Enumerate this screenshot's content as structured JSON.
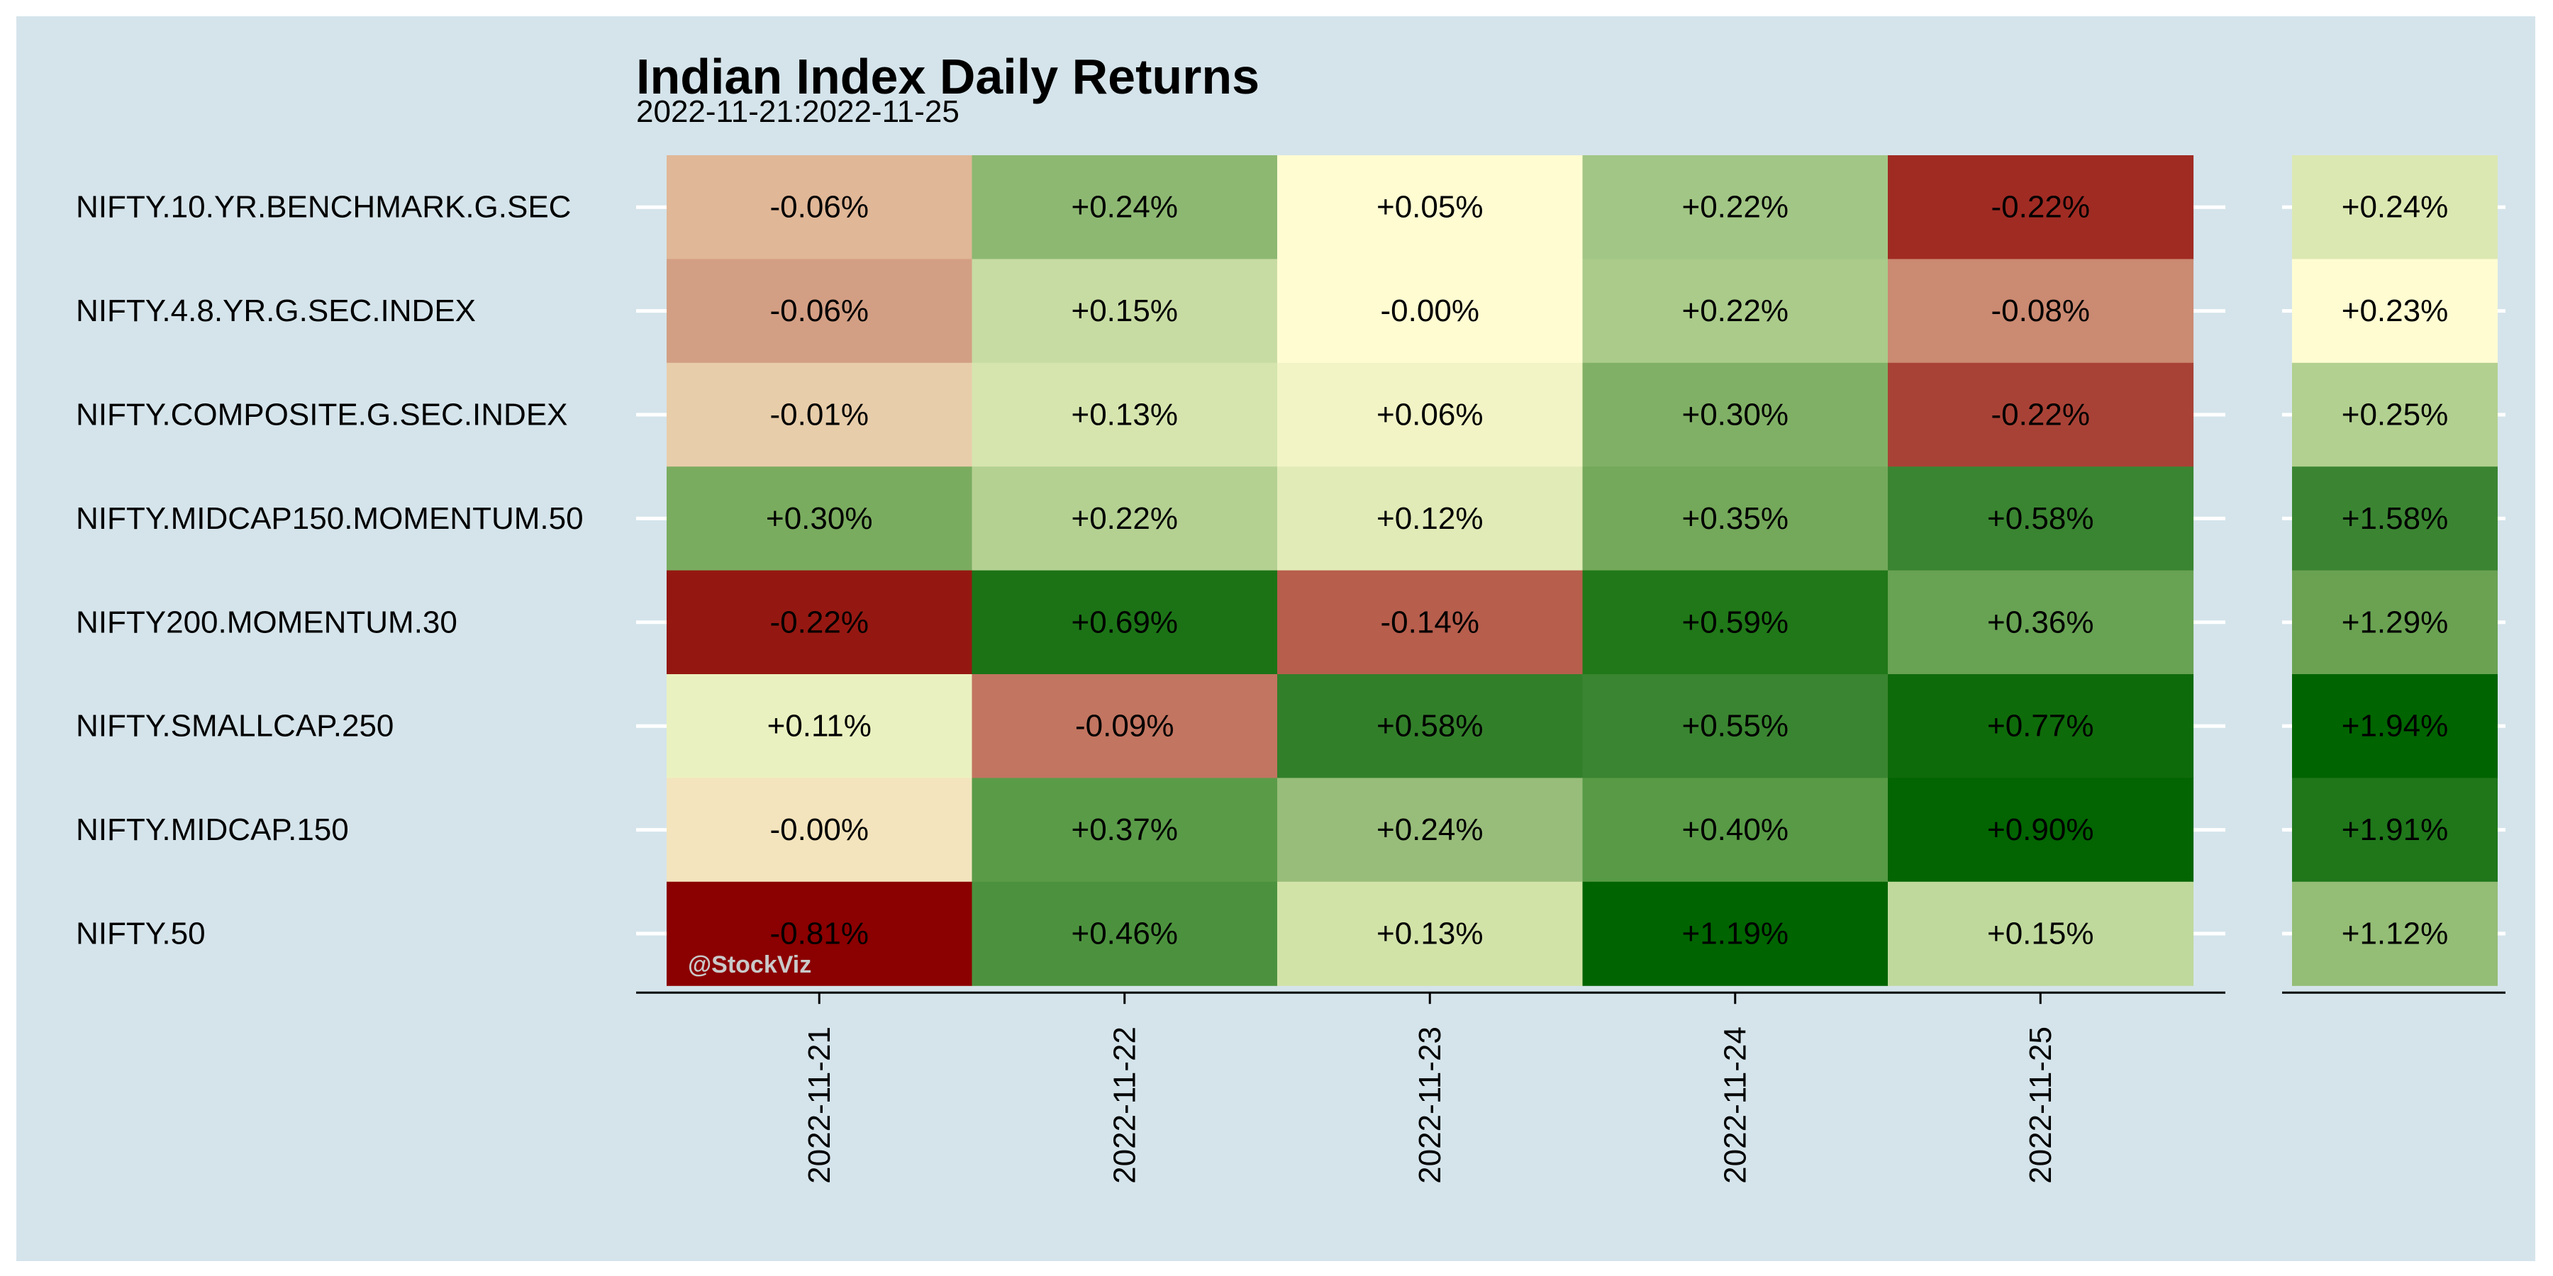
{
  "chart_data": {
    "type": "heatmap",
    "title": "Indian Index Daily Returns",
    "subtitle": "2022-11-21:2022-11-25",
    "watermark": "@StockViz",
    "x": [
      "2022-11-21",
      "2022-11-22",
      "2022-11-23",
      "2022-11-24",
      "2022-11-25"
    ],
    "rows": [
      {
        "name": "NIFTY.10.YR.BENCHMARK.G.SEC",
        "labels": [
          "-0.06%",
          "+0.24%",
          "+0.05%",
          "+0.22%",
          "-0.22%"
        ],
        "values": [
          -0.06,
          0.24,
          0.05,
          0.22,
          -0.22
        ],
        "colors": [
          "#e0b797",
          "#8db872",
          "#fffcd2",
          "#a2c685",
          "#a02b23"
        ],
        "total_label": "+0.24%",
        "total": 0.24,
        "total_color": "#dce8b2"
      },
      {
        "name": "NIFTY.4.8.YR.G.SEC.INDEX",
        "labels": [
          "-0.06%",
          "+0.15%",
          "-0.00%",
          "+0.22%",
          "-0.08%"
        ],
        "values": [
          -0.06,
          0.15,
          -0.0,
          0.22,
          -0.08
        ],
        "colors": [
          "#d39f84",
          "#c7dca3",
          "#fffcd2",
          "#aacb8a",
          "#cb8a72"
        ],
        "total_label": "+0.23%",
        "total": 0.23,
        "total_color": "#fffcd2"
      },
      {
        "name": "NIFTY.COMPOSITE.G.SEC.INDEX",
        "labels": [
          "-0.01%",
          "+0.13%",
          "+0.06%",
          "+0.30%",
          "-0.22%"
        ],
        "values": [
          -0.01,
          0.13,
          0.06,
          0.3,
          -0.22
        ],
        "colors": [
          "#e8cdaa",
          "#d6e5ae",
          "#f2f4c5",
          "#80b065",
          "#a94236"
        ],
        "total_label": "+0.25%",
        "total": 0.25,
        "total_color": "#b2d08f"
      },
      {
        "name": "NIFTY.MIDCAP150.MOMENTUM.50",
        "labels": [
          "+0.30%",
          "+0.22%",
          "+0.12%",
          "+0.35%",
          "+0.58%"
        ],
        "values": [
          0.3,
          0.22,
          0.12,
          0.35,
          0.58
        ],
        "colors": [
          "#7aac5f",
          "#b4d192",
          "#e1ebb7",
          "#74a85a",
          "#3a8531"
        ],
        "total_label": "+1.58%",
        "total": 1.58,
        "total_color": "#3b8532"
      },
      {
        "name": "NIFTY200.MOMENTUM.30",
        "labels": [
          "-0.22%",
          "+0.69%",
          "-0.14%",
          "+0.59%",
          "+0.36%"
        ],
        "values": [
          -0.22,
          0.69,
          -0.14,
          0.59,
          0.36
        ],
        "colors": [
          "#941811",
          "#1c7316",
          "#b75e4d",
          "#207818",
          "#68a253"
        ],
        "total_label": "+1.29%",
        "total": 1.29,
        "total_color": "#6aa252"
      },
      {
        "name": "NIFTY.SMALLCAP.250",
        "labels": [
          "+0.11%",
          "-0.09%",
          "+0.58%",
          "+0.55%",
          "+0.77%"
        ],
        "values": [
          0.11,
          -0.09,
          0.58,
          0.55,
          0.77
        ],
        "colors": [
          "#eaf1c0",
          "#c27561",
          "#327f2a",
          "#3a8531",
          "#0e6b0a"
        ],
        "total_label": "+1.94%",
        "total": 1.94,
        "total_color": "#006400"
      },
      {
        "name": "NIFTY.MIDCAP.150",
        "labels": [
          "-0.00%",
          "+0.37%",
          "+0.24%",
          "+0.40%",
          "+0.90%"
        ],
        "values": [
          -0.0,
          0.37,
          0.24,
          0.4,
          0.9
        ],
        "colors": [
          "#f3e4bd",
          "#5a9b48",
          "#98bd7a",
          "#589a46",
          "#026501"
        ],
        "total_label": "+1.91%",
        "total": 1.91,
        "total_color": "#1f771a"
      },
      {
        "name": "NIFTY.50",
        "labels": [
          "-0.81%",
          "+0.46%",
          "+0.13%",
          "+1.19%",
          "+0.15%"
        ],
        "values": [
          -0.81,
          0.46,
          0.13,
          1.19,
          0.15
        ],
        "colors": [
          "#8b0000",
          "#4c923e",
          "#d2e3a8",
          "#006400",
          "#bfd99c"
        ],
        "total_label": "+1.12%",
        "total": 1.12,
        "total_color": "#94bd76"
      }
    ],
    "grid": false
  }
}
